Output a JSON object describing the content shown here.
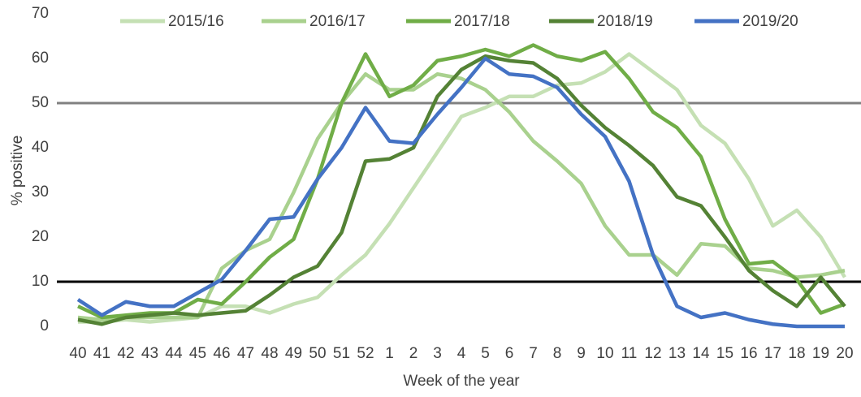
{
  "chart_data": {
    "type": "line",
    "xlabel": "Week of the year",
    "ylabel": "% positive",
    "categories": [
      "40",
      "41",
      "42",
      "43",
      "44",
      "45",
      "46",
      "47",
      "48",
      "49",
      "50",
      "51",
      "52",
      "1",
      "2",
      "3",
      "4",
      "5",
      "6",
      "7",
      "8",
      "9",
      "10",
      "11",
      "12",
      "13",
      "14",
      "15",
      "16",
      "17",
      "18",
      "19",
      "20"
    ],
    "series": [
      {
        "name": "2015/16",
        "color": "#c5e0b4",
        "values": [
          1,
          1,
          1.5,
          1,
          1.5,
          2,
          4.5,
          4.5,
          3,
          5,
          6.5,
          11.5,
          16,
          23,
          31,
          39,
          47,
          49,
          51.5,
          51.5,
          54,
          54.5,
          57,
          61,
          57,
          53,
          45,
          41,
          33,
          22.5,
          26,
          20,
          11
        ]
      },
      {
        "name": "2016/17",
        "color": "#a9d18e",
        "values": [
          2,
          1.5,
          2,
          2,
          2,
          2,
          13,
          17,
          19.5,
          30,
          42,
          50,
          56.5,
          53,
          53,
          56.5,
          55.5,
          53,
          48,
          41.5,
          37,
          32,
          22.5,
          16,
          16,
          11.5,
          18.5,
          18,
          13,
          12.5,
          11,
          11.5,
          12.5
        ]
      },
      {
        "name": "2017/18",
        "color": "#70ad47",
        "values": [
          4.5,
          2,
          2.5,
          3,
          3,
          6,
          5,
          10,
          15.5,
          19.5,
          33,
          50,
          61,
          51.5,
          54,
          59.5,
          60.5,
          62,
          60.5,
          63,
          60.5,
          59.5,
          61.5,
          55.5,
          48,
          44.5,
          38,
          24,
          14,
          14.5,
          10.5,
          3,
          5
        ]
      },
      {
        "name": "2018/19",
        "color": "#548235",
        "values": [
          1.5,
          0.5,
          2,
          2.5,
          3,
          2.5,
          3,
          3.5,
          7,
          11,
          13.5,
          21,
          37,
          37.5,
          40,
          51.5,
          57.5,
          60.5,
          59.5,
          59,
          55.5,
          49.5,
          44.5,
          40.5,
          36,
          29,
          27,
          20,
          12.5,
          8,
          4.5,
          11,
          4.5
        ]
      },
      {
        "name": "2019/20",
        "color": "#4472c4",
        "values": [
          6,
          2.5,
          5.5,
          4.5,
          4.5,
          7.5,
          10.5,
          17,
          24,
          24.5,
          33,
          40,
          49,
          41.5,
          41,
          47.5,
          53.5,
          60,
          56.5,
          56,
          53.5,
          47.5,
          42.5,
          32.5,
          16,
          4.5,
          2,
          3,
          1.5,
          0.5,
          0,
          0,
          0
        ]
      }
    ],
    "ylim": [
      0,
      70
    ],
    "yticks": [
      0,
      10,
      20,
      30,
      40,
      50,
      60,
      70
    ],
    "grid": false,
    "reference_lines": [
      {
        "value": 50,
        "color": "#808080"
      },
      {
        "value": 10,
        "color": "#000000"
      }
    ],
    "legend": "top"
  }
}
